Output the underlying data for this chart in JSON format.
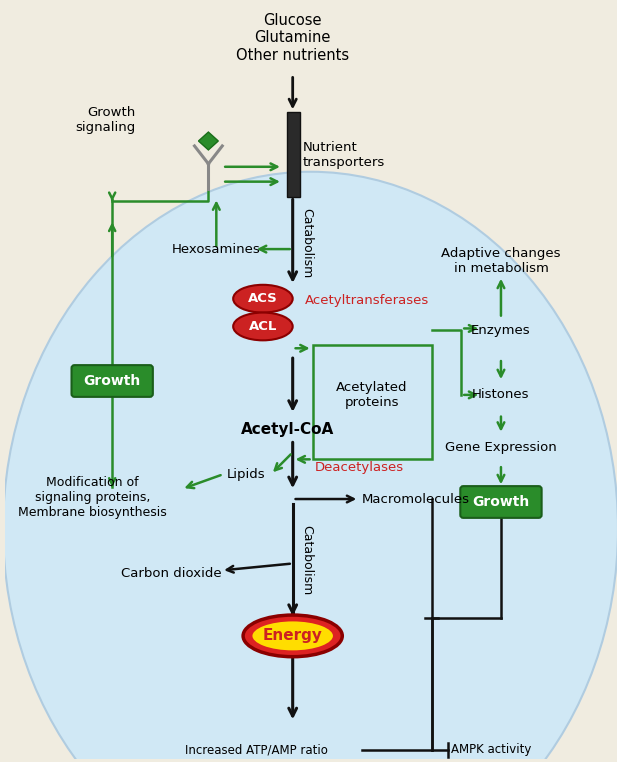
{
  "bg_top": "#f0ece0",
  "bg_cell": "#d0e8f5",
  "cell_edge": "#b0cce0",
  "arrow_black": "#111111",
  "arrow_green": "#2a8c2a",
  "red_oval": "#cc2222",
  "red_text": "#cc2222",
  "green_box": "#2a8c2a",
  "energy_outer": "#dd2222",
  "energy_inner": "#ffdd00",
  "title_nutrients": "Glucose\nGlutamine\nOther nutrients",
  "label_nutrient_transporters": "Nutrient\ntransporters",
  "label_catabolism_top": "Catabolism",
  "label_catabolism_bot": "Catabolism",
  "label_hexosamines": "Hexosamines",
  "label_acs": "ACS",
  "label_acl": "ACL",
  "label_acetyltransferases": "Acetyltransferases",
  "label_acetyl_coa": "Acetyl-CoA",
  "label_acetylated_proteins": "Acetylated\nproteins",
  "label_deacetylases": "Deacetylases",
  "label_lipids": "Lipids",
  "label_macromolecules": "Macromolecules",
  "label_carbon_dioxide": "Carbon dioxide",
  "label_energy": "Energy",
  "label_atp_amp": "Increased ATP/AMP ratio",
  "label_ampk": "AMPK activity",
  "label_growth_signaling": "Growth\nsignaling",
  "label_growth_left": "Growth",
  "label_modification": "Modification of\nsignaling proteins,\nMembrane biosynthesis",
  "label_adaptive": "Adaptive changes\nin metabolism",
  "label_enzymes": "Enzymes",
  "label_histones": "Histones",
  "label_gene_expression": "Gene Expression",
  "label_growth_right": "Growth"
}
